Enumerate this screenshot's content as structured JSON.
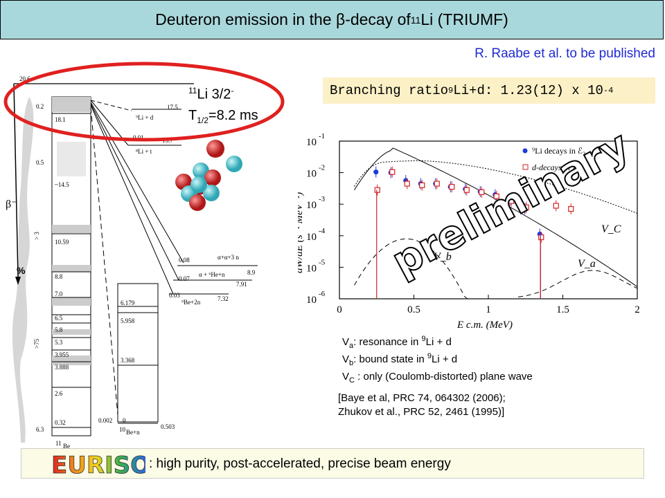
{
  "header": {
    "title_main": "Deuteron emission in the β-decay of ",
    "title_mass": "11",
    "title_tail": "Li (TRIUMF)",
    "reference": "R. Raabe et al. to be published"
  },
  "branching": {
    "prefix": "Branching ratio ",
    "mass": "9",
    "mid": "Li+d: 1.23(12) x 10",
    "exp": "-4"
  },
  "li11_label": {
    "mass": "11",
    "text": "Li 3/2",
    "parity": "-",
    "half_life_t": "T",
    "half_life_sub": "1/2",
    "half_life_val": "=8.2 ms"
  },
  "level_scheme": {
    "parent_energy": "20.6",
    "beta_label": "β⁻",
    "percent_label": "%",
    "branch_labels": [
      "0.2",
      "0.5",
      "> 3",
      ">75",
      "6.3"
    ],
    "be11_levels": [
      "18.1",
      "~14.5",
      "10.59",
      "8.8",
      "7.0",
      "6.5",
      "5.8",
      "5.3",
      "3.955",
      "3.888",
      "2.6",
      "0.32"
    ],
    "be11_nucleus_mass": "11",
    "be11_nucleus": "Be",
    "channels": [
      {
        "energy": "17.5",
        "branch": "",
        "label": "⁹Li + d"
      },
      {
        "energy": "15.7",
        "branch": "0.01",
        "label": "⁸Li + t"
      },
      {
        "energy": "8.9",
        "branch": "0.08",
        "label": "α+α+3 n"
      },
      {
        "energy": "7.91",
        "branch": "0.07",
        "label": "α + ⁶He+n"
      },
      {
        "energy": "7.32",
        "branch": "0.03",
        "label": "⁹Be+2n"
      }
    ],
    "be10_levels": [
      "6.179",
      "5.958",
      "3.368",
      "0"
    ],
    "be10_branch_top": "0.002",
    "be10_threshold": "0.503",
    "be10_nucleus_mass": "10",
    "be10_nucleus": "Be+n"
  },
  "chart_data": {
    "type": "scatter",
    "title": "",
    "xlabel": "E c.m. (MeV)",
    "ylabel": "dW/dE (s⁻¹ MeV⁻¹)",
    "xlim": [
      0,
      2
    ],
    "ylim_exponent": [
      -6,
      -1
    ],
    "y_scale": "log",
    "x_ticks": [
      "0",
      "0.5",
      "1",
      "1.5",
      "2"
    ],
    "y_ticks": [
      "10^-1",
      "10^-2",
      "10^-3",
      "10^-4",
      "10^-5",
      "10^-6"
    ],
    "legend": [
      "⁹Li decays in ℰ₂",
      "d-decays in ℰ₁"
    ],
    "legend_position": "top-right",
    "series": [
      {
        "name": "⁹Li decays in ℰ₂",
        "marker": "filled circle",
        "color": "#1f3bd6",
        "x": [
          0.25,
          0.35,
          0.45,
          0.55,
          0.65,
          0.75,
          0.85,
          0.95,
          1.05,
          1.15,
          1.25,
          1.35
        ],
        "y": [
          -1.98,
          -2.0,
          -2.25,
          -2.35,
          -2.35,
          -2.45,
          -2.52,
          -2.6,
          -2.7,
          -2.87,
          -3.15,
          -3.95
        ]
      },
      {
        "name": "d-decays in ℰ₁",
        "marker": "open square",
        "color": "#d62020",
        "x": [
          0.25,
          0.35,
          0.45,
          0.55,
          0.65,
          0.75,
          0.85,
          0.95,
          1.05,
          1.15,
          1.25,
          1.35,
          1.45,
          1.55
        ],
        "y": [
          -2.55,
          -1.98,
          -2.35,
          -2.4,
          -2.35,
          -2.45,
          -2.55,
          -2.62,
          -2.75,
          -2.9,
          -3.1,
          -4.05,
          -3.05,
          -3.15
        ]
      }
    ],
    "curves": [
      "V_C",
      "V_a",
      "V_b"
    ],
    "watermark": "preliminary"
  },
  "notes": {
    "va": {
      "v": "V",
      "sub": "a",
      "text": ": resonance in ",
      "mass": "9",
      "tail": "Li + d"
    },
    "vb": {
      "v": "V",
      "sub": "b",
      "text": ": bound state in ",
      "mass": "9",
      "tail": "Li + d"
    },
    "vc": {
      "v": "V",
      "sub": "C",
      "text": " : only (Coulomb-distorted) plane wave"
    },
    "ref1": "[Baye et al, PRC 74, 064302 (2006);",
    "ref2": "Zhukov et al., PRC 52, 2461 (1995)]"
  },
  "footer": {
    "logo": "EURISOL",
    "text": ": high purity, post-accelerated, precise beam energy"
  },
  "colors": {
    "title_bg": "#a9d8dc",
    "branch_bg": "#fbf0c6",
    "reference": "#1f2bd1",
    "highlight_ellipse": "#e02020"
  }
}
